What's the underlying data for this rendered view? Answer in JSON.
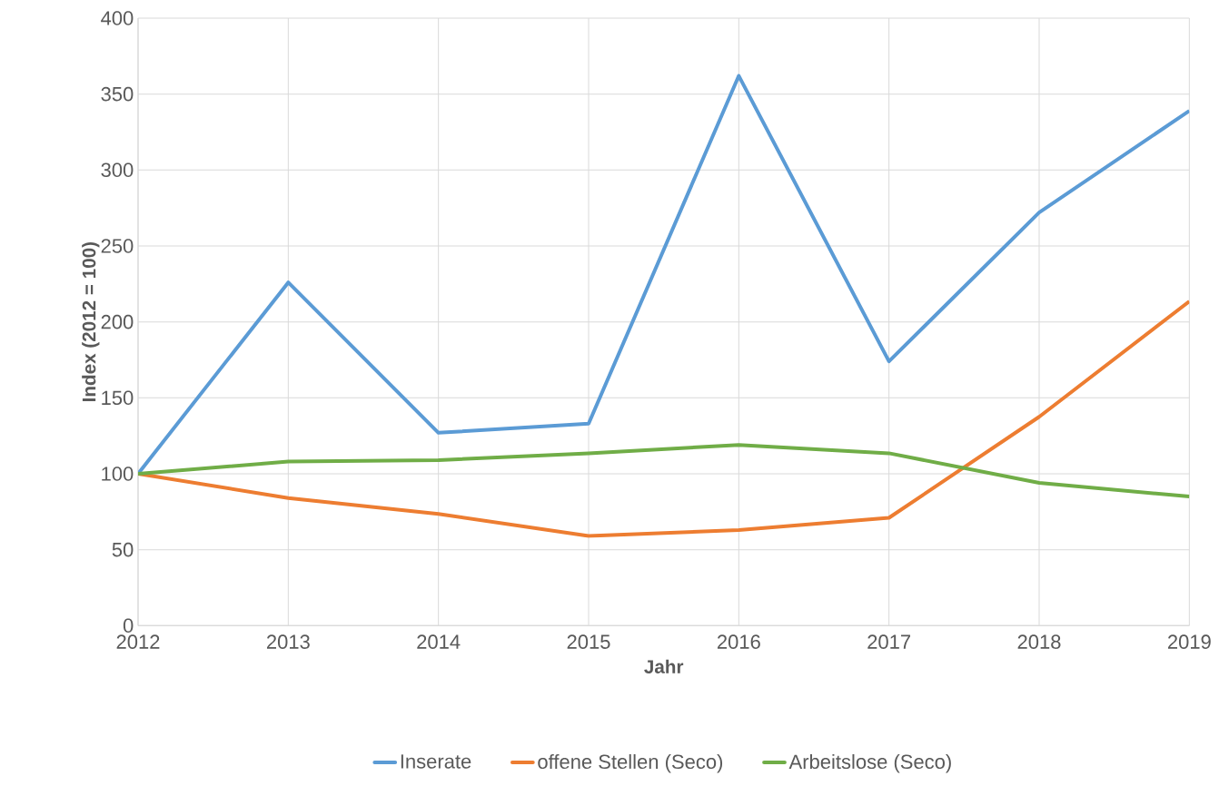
{
  "chart_data": {
    "type": "line",
    "xlabel": "Jahr",
    "ylabel": "Index (2012 = 100)",
    "x": [
      2012,
      2013,
      2014,
      2015,
      2016,
      2017,
      2018,
      2019
    ],
    "series": [
      {
        "name": "Inserate",
        "color": "#5b9bd5",
        "values": [
          100,
          226,
          127,
          133,
          362,
          174,
          272,
          339
        ]
      },
      {
        "name": "offene Stellen (Seco)",
        "color": "#ed7d31",
        "values": [
          100,
          84,
          73.5,
          59,
          63,
          71,
          137.5,
          213.5
        ]
      },
      {
        "name": "Arbeitslose (Seco)",
        "color": "#70ad47",
        "values": [
          100,
          108,
          109,
          113.5,
          119,
          113.5,
          94,
          85
        ]
      }
    ],
    "xlim": [
      2012,
      2019
    ],
    "xticks": [
      2012,
      2013,
      2014,
      2015,
      2016,
      2017,
      2018,
      2019
    ],
    "ylim": [
      0,
      400
    ],
    "yticks": [
      0,
      50,
      100,
      150,
      200,
      250,
      300,
      350,
      400
    ],
    "grid": true,
    "legend": "bottom",
    "marker": "none",
    "line_style": "solid"
  }
}
